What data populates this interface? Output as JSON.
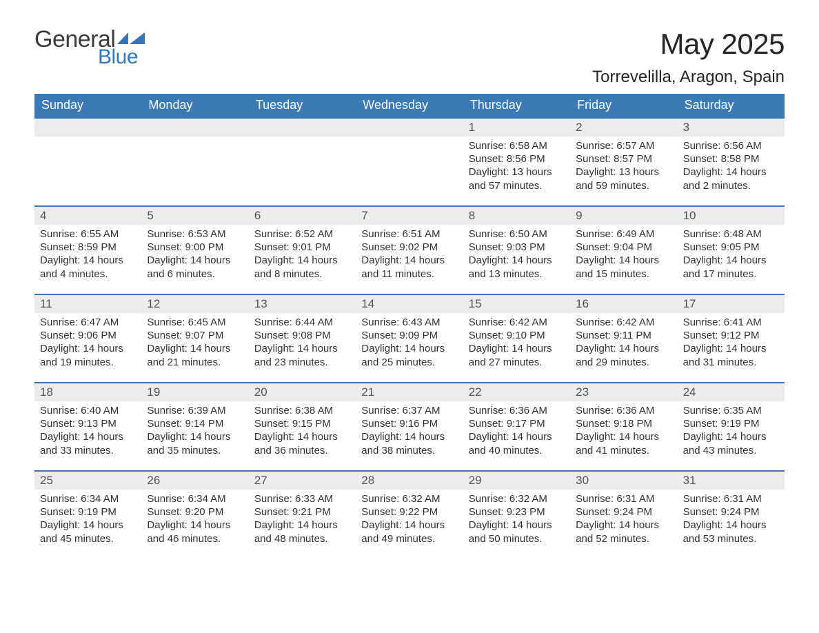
{
  "logo": {
    "text_general": "General",
    "text_blue": "Blue",
    "accent_color": "#2f78bf"
  },
  "header": {
    "month_title": "May 2025",
    "location": "Torrevelilla, Aragon, Spain"
  },
  "colors": {
    "header_bg": "#3b79b7",
    "header_text": "#ffffff",
    "daynum_bg": "#ececec",
    "daynum_text": "#555555",
    "body_text": "#333333",
    "rule": "#3b79b7",
    "page_bg": "#ffffff"
  },
  "calendar": {
    "weekdays": [
      "Sunday",
      "Monday",
      "Tuesday",
      "Wednesday",
      "Thursday",
      "Friday",
      "Saturday"
    ],
    "weeks": [
      [
        {
          "day": "",
          "sunrise": "",
          "sunset": "",
          "daylight": ""
        },
        {
          "day": "",
          "sunrise": "",
          "sunset": "",
          "daylight": ""
        },
        {
          "day": "",
          "sunrise": "",
          "sunset": "",
          "daylight": ""
        },
        {
          "day": "",
          "sunrise": "",
          "sunset": "",
          "daylight": ""
        },
        {
          "day": "1",
          "sunrise": "Sunrise: 6:58 AM",
          "sunset": "Sunset: 8:56 PM",
          "daylight": "Daylight: 13 hours and 57 minutes."
        },
        {
          "day": "2",
          "sunrise": "Sunrise: 6:57 AM",
          "sunset": "Sunset: 8:57 PM",
          "daylight": "Daylight: 13 hours and 59 minutes."
        },
        {
          "day": "3",
          "sunrise": "Sunrise: 6:56 AM",
          "sunset": "Sunset: 8:58 PM",
          "daylight": "Daylight: 14 hours and 2 minutes."
        }
      ],
      [
        {
          "day": "4",
          "sunrise": "Sunrise: 6:55 AM",
          "sunset": "Sunset: 8:59 PM",
          "daylight": "Daylight: 14 hours and 4 minutes."
        },
        {
          "day": "5",
          "sunrise": "Sunrise: 6:53 AM",
          "sunset": "Sunset: 9:00 PM",
          "daylight": "Daylight: 14 hours and 6 minutes."
        },
        {
          "day": "6",
          "sunrise": "Sunrise: 6:52 AM",
          "sunset": "Sunset: 9:01 PM",
          "daylight": "Daylight: 14 hours and 8 minutes."
        },
        {
          "day": "7",
          "sunrise": "Sunrise: 6:51 AM",
          "sunset": "Sunset: 9:02 PM",
          "daylight": "Daylight: 14 hours and 11 minutes."
        },
        {
          "day": "8",
          "sunrise": "Sunrise: 6:50 AM",
          "sunset": "Sunset: 9:03 PM",
          "daylight": "Daylight: 14 hours and 13 minutes."
        },
        {
          "day": "9",
          "sunrise": "Sunrise: 6:49 AM",
          "sunset": "Sunset: 9:04 PM",
          "daylight": "Daylight: 14 hours and 15 minutes."
        },
        {
          "day": "10",
          "sunrise": "Sunrise: 6:48 AM",
          "sunset": "Sunset: 9:05 PM",
          "daylight": "Daylight: 14 hours and 17 minutes."
        }
      ],
      [
        {
          "day": "11",
          "sunrise": "Sunrise: 6:47 AM",
          "sunset": "Sunset: 9:06 PM",
          "daylight": "Daylight: 14 hours and 19 minutes."
        },
        {
          "day": "12",
          "sunrise": "Sunrise: 6:45 AM",
          "sunset": "Sunset: 9:07 PM",
          "daylight": "Daylight: 14 hours and 21 minutes."
        },
        {
          "day": "13",
          "sunrise": "Sunrise: 6:44 AM",
          "sunset": "Sunset: 9:08 PM",
          "daylight": "Daylight: 14 hours and 23 minutes."
        },
        {
          "day": "14",
          "sunrise": "Sunrise: 6:43 AM",
          "sunset": "Sunset: 9:09 PM",
          "daylight": "Daylight: 14 hours and 25 minutes."
        },
        {
          "day": "15",
          "sunrise": "Sunrise: 6:42 AM",
          "sunset": "Sunset: 9:10 PM",
          "daylight": "Daylight: 14 hours and 27 minutes."
        },
        {
          "day": "16",
          "sunrise": "Sunrise: 6:42 AM",
          "sunset": "Sunset: 9:11 PM",
          "daylight": "Daylight: 14 hours and 29 minutes."
        },
        {
          "day": "17",
          "sunrise": "Sunrise: 6:41 AM",
          "sunset": "Sunset: 9:12 PM",
          "daylight": "Daylight: 14 hours and 31 minutes."
        }
      ],
      [
        {
          "day": "18",
          "sunrise": "Sunrise: 6:40 AM",
          "sunset": "Sunset: 9:13 PM",
          "daylight": "Daylight: 14 hours and 33 minutes."
        },
        {
          "day": "19",
          "sunrise": "Sunrise: 6:39 AM",
          "sunset": "Sunset: 9:14 PM",
          "daylight": "Daylight: 14 hours and 35 minutes."
        },
        {
          "day": "20",
          "sunrise": "Sunrise: 6:38 AM",
          "sunset": "Sunset: 9:15 PM",
          "daylight": "Daylight: 14 hours and 36 minutes."
        },
        {
          "day": "21",
          "sunrise": "Sunrise: 6:37 AM",
          "sunset": "Sunset: 9:16 PM",
          "daylight": "Daylight: 14 hours and 38 minutes."
        },
        {
          "day": "22",
          "sunrise": "Sunrise: 6:36 AM",
          "sunset": "Sunset: 9:17 PM",
          "daylight": "Daylight: 14 hours and 40 minutes."
        },
        {
          "day": "23",
          "sunrise": "Sunrise: 6:36 AM",
          "sunset": "Sunset: 9:18 PM",
          "daylight": "Daylight: 14 hours and 41 minutes."
        },
        {
          "day": "24",
          "sunrise": "Sunrise: 6:35 AM",
          "sunset": "Sunset: 9:19 PM",
          "daylight": "Daylight: 14 hours and 43 minutes."
        }
      ],
      [
        {
          "day": "25",
          "sunrise": "Sunrise: 6:34 AM",
          "sunset": "Sunset: 9:19 PM",
          "daylight": "Daylight: 14 hours and 45 minutes."
        },
        {
          "day": "26",
          "sunrise": "Sunrise: 6:34 AM",
          "sunset": "Sunset: 9:20 PM",
          "daylight": "Daylight: 14 hours and 46 minutes."
        },
        {
          "day": "27",
          "sunrise": "Sunrise: 6:33 AM",
          "sunset": "Sunset: 9:21 PM",
          "daylight": "Daylight: 14 hours and 48 minutes."
        },
        {
          "day": "28",
          "sunrise": "Sunrise: 6:32 AM",
          "sunset": "Sunset: 9:22 PM",
          "daylight": "Daylight: 14 hours and 49 minutes."
        },
        {
          "day": "29",
          "sunrise": "Sunrise: 6:32 AM",
          "sunset": "Sunset: 9:23 PM",
          "daylight": "Daylight: 14 hours and 50 minutes."
        },
        {
          "day": "30",
          "sunrise": "Sunrise: 6:31 AM",
          "sunset": "Sunset: 9:24 PM",
          "daylight": "Daylight: 14 hours and 52 minutes."
        },
        {
          "day": "31",
          "sunrise": "Sunrise: 6:31 AM",
          "sunset": "Sunset: 9:24 PM",
          "daylight": "Daylight: 14 hours and 53 minutes."
        }
      ]
    ]
  }
}
